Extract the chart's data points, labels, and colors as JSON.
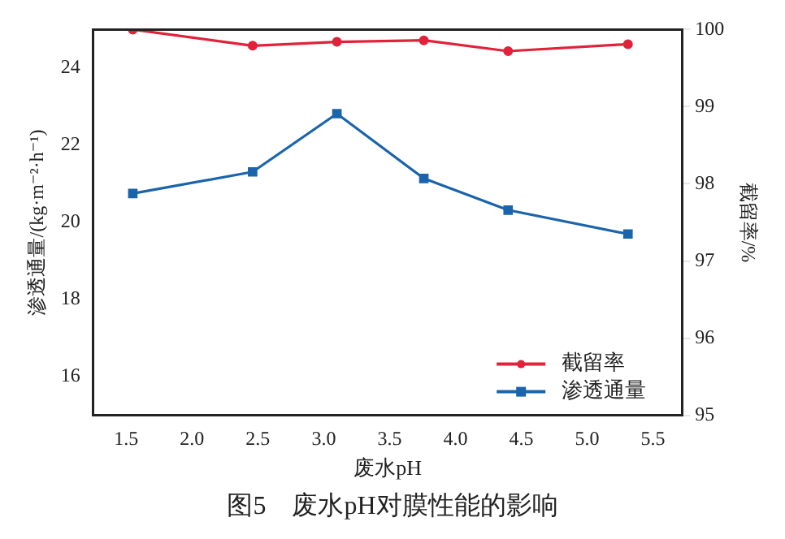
{
  "chart_data": {
    "type": "line",
    "title": "图5　废水pH对膜性能的影响",
    "xlabel": "废水pH",
    "ylabel": "渗透通量/(kg·m⁻²·h⁻¹)",
    "y2label": "截留率/%",
    "x": [
      1.55,
      2.46,
      3.1,
      3.76,
      4.4,
      5.31
    ],
    "xlim": [
      1.25,
      5.72
    ],
    "xticks": [
      1.5,
      {
        "value": 2,
        "label": "2.0"
      },
      2.5,
      {
        "value": 3,
        "label": "3.0"
      },
      3.5,
      {
        "value": 4,
        "label": "4.0"
      },
      4.5,
      {
        "value": 5,
        "label": "5.0"
      },
      5.5
    ],
    "ylim": [
      15,
      25
    ],
    "yticks": [
      16,
      18,
      20,
      22,
      24
    ],
    "y2lim": [
      95,
      100
    ],
    "y2ticks": [
      95,
      96,
      97,
      98,
      99,
      100
    ],
    "series": [
      {
        "name": "截留率",
        "color": "#e0223a",
        "axis": "y2",
        "marker": "circle",
        "values": [
          100,
          99.79,
          99.84,
          99.86,
          99.72,
          99.81
        ]
      },
      {
        "name": "渗透通量",
        "color": "#1a64ac",
        "marker": "square",
        "values": [
          20.75,
          21.31,
          22.82,
          21.14,
          20.32,
          19.7
        ]
      }
    ],
    "legend": "bottom right",
    "grid": false,
    "line_style": "solid"
  }
}
